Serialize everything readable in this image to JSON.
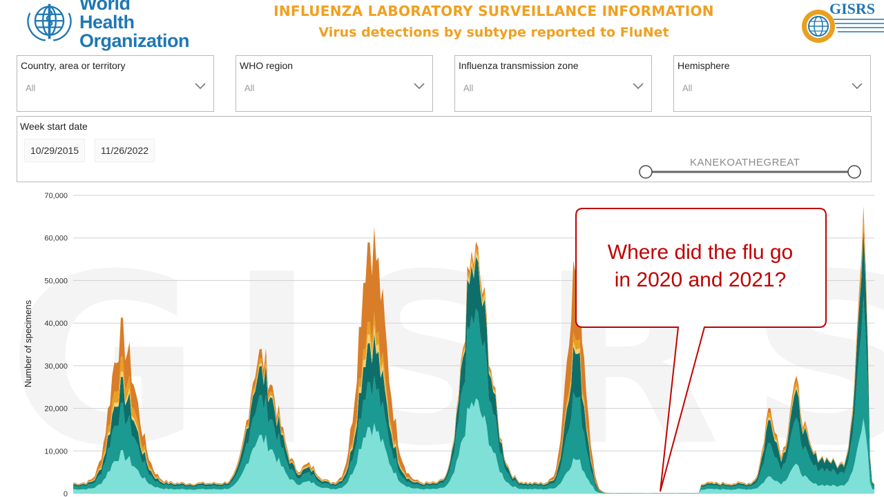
{
  "header": {
    "who_line1": "World Health",
    "who_line2": "Organization",
    "title": "INFLUENZA LABORATORY SURVEILLANCE INFORMATION",
    "subtitle": "Virus detections by subtype reported to FluNet",
    "gisrs_label": "GISRS"
  },
  "filters": [
    {
      "label": "Country, area or territory",
      "value": "All"
    },
    {
      "label": "WHO region",
      "value": "All"
    },
    {
      "label": "Influenza transmission zone",
      "value": "All"
    },
    {
      "label": "Hemisphere",
      "value": "All"
    }
  ],
  "date_filter": {
    "label": "Week start date",
    "start": "10/29/2015",
    "end": "11/26/2022",
    "slider_start": 0,
    "slider_end": 1
  },
  "watermark": "KANEKOATHEGREAT",
  "callout": {
    "line1": "Where did the flu go",
    "line2": "in 2020 and 2021?"
  },
  "colors": {
    "title": "#f0a020",
    "who_blue": "#1f77b4",
    "callout_red": "#c00000"
  },
  "chart_data": {
    "type": "area",
    "stacked": true,
    "ylabel": "Number of specimens",
    "ylim": [
      0,
      70000
    ],
    "yticks": [
      "0",
      "10,000",
      "20,000",
      "30,000",
      "40,000",
      "50,000",
      "60,000",
      "70,000"
    ],
    "xlim": [
      0,
      370
    ],
    "grid": true,
    "colors": [
      "#7fe0d8",
      "#1a9a90",
      "#0e6f6a",
      "#f7d070",
      "#e8a020",
      "#d97d28"
    ],
    "peaks": [
      {
        "center": 22,
        "left_width": 5,
        "right_width": 7,
        "layers": [
          8000,
          9000,
          5000,
          1000,
          3000,
          8000
        ]
      },
      {
        "center": 86,
        "left_width": 5,
        "right_width": 8,
        "layers": [
          12000,
          8000,
          6000,
          500,
          1000,
          2000
        ]
      },
      {
        "center": 109,
        "left_width": 3,
        "right_width": 4,
        "layers": [
          1500,
          1000,
          600,
          100,
          200,
          300
        ]
      },
      {
        "center": 137,
        "left_width": 5,
        "right_width": 7,
        "layers": [
          15000,
          10000,
          9000,
          2000,
          3000,
          19000
        ]
      },
      {
        "center": 185,
        "left_width": 5,
        "right_width": 7,
        "layers": [
          20000,
          19000,
          11000,
          1000,
          1000,
          1000
        ]
      },
      {
        "center": 232,
        "left_width": 4,
        "right_width": 4,
        "layers": [
          7000,
          14000,
          10000,
          1000,
          2000,
          16000
        ]
      },
      {
        "center": 322,
        "left_width": 3,
        "right_width": 3,
        "layers": [
          3000,
          7000,
          5000,
          500,
          1000,
          1000
        ]
      },
      {
        "center": 333,
        "left_width": 3,
        "right_width": 4,
        "layers": [
          5000,
          8000,
          5000,
          500,
          1000,
          1000
        ]
      },
      {
        "center": 346,
        "left_width": 8,
        "right_width": 8,
        "layers": [
          1000,
          3000,
          2000,
          0,
          0,
          0
        ]
      },
      {
        "center": 366,
        "left_width": 4,
        "right_width": 1,
        "layers": [
          15000,
          25000,
          14000,
          500,
          2000,
          2000
        ]
      }
    ],
    "baseline": {
      "value": 2500,
      "layers": [
        1000,
        800,
        400,
        100,
        100,
        100
      ]
    },
    "gap": [
      240,
      290
    ]
  }
}
